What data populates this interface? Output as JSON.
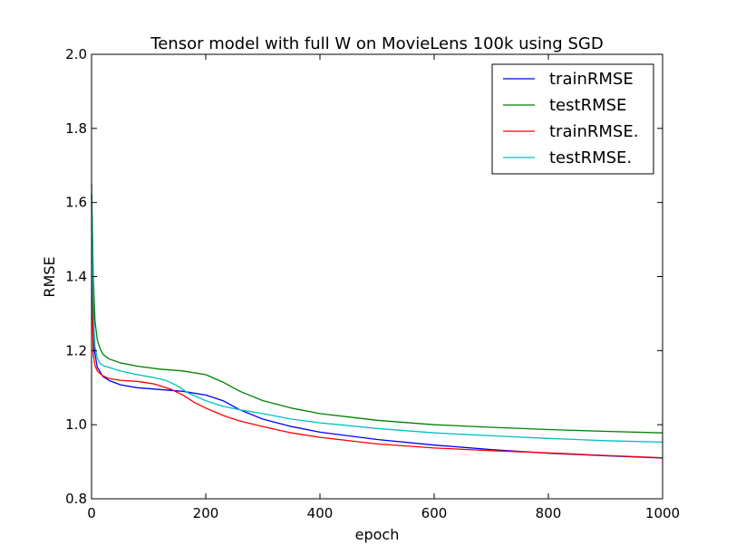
{
  "chart_data": {
    "type": "line",
    "title": "Tensor model with full W on MovieLens 100k using SGD",
    "xlabel": "epoch",
    "ylabel": "RMSE",
    "xlim": [
      0,
      1000
    ],
    "ylim": [
      0.8,
      2.0
    ],
    "xticks": [
      0,
      200,
      400,
      600,
      800,
      1000
    ],
    "xtick_labels": [
      "0",
      "200",
      "400",
      "600",
      "800",
      "1000"
    ],
    "yticks": [
      0.8,
      1.0,
      1.2,
      1.4,
      1.6,
      1.8,
      2.0
    ],
    "ytick_labels": [
      "0.8",
      "1.0",
      "1.2",
      "1.4",
      "1.6",
      "1.8",
      "2.0"
    ],
    "grid": false,
    "legend_position": "top-right",
    "series": [
      {
        "name": "trainRMSE",
        "color": "#0000ff",
        "x": [
          0,
          5,
          10,
          20,
          30,
          50,
          80,
          120,
          160,
          200,
          230,
          260,
          300,
          350,
          400,
          500,
          600,
          700,
          800,
          900,
          1000
        ],
        "y": [
          1.62,
          1.2,
          1.155,
          1.13,
          1.12,
          1.108,
          1.1,
          1.095,
          1.09,
          1.08,
          1.065,
          1.04,
          1.015,
          0.995,
          0.98,
          0.96,
          0.945,
          0.933,
          0.923,
          0.916,
          0.91
        ]
      },
      {
        "name": "testRMSE",
        "color": "#008000",
        "x": [
          0,
          3,
          6,
          10,
          15,
          20,
          30,
          50,
          80,
          120,
          160,
          200,
          230,
          260,
          300,
          350,
          400,
          500,
          600,
          700,
          800,
          900,
          1000
        ],
        "y": [
          1.65,
          1.4,
          1.28,
          1.23,
          1.205,
          1.19,
          1.178,
          1.167,
          1.158,
          1.15,
          1.145,
          1.135,
          1.115,
          1.09,
          1.065,
          1.045,
          1.03,
          1.012,
          1.0,
          0.993,
          0.987,
          0.982,
          0.978
        ]
      },
      {
        "name": "trainRMSE.",
        "color": "#ff0000",
        "x": [
          0,
          3,
          6,
          10,
          15,
          20,
          30,
          50,
          80,
          110,
          140,
          160,
          180,
          200,
          230,
          260,
          300,
          350,
          400,
          500,
          600,
          700,
          800,
          900,
          1000
        ],
        "y": [
          1.45,
          1.19,
          1.16,
          1.145,
          1.138,
          1.132,
          1.125,
          1.12,
          1.117,
          1.11,
          1.095,
          1.08,
          1.06,
          1.045,
          1.025,
          1.01,
          0.995,
          0.978,
          0.966,
          0.948,
          0.937,
          0.93,
          0.924,
          0.917,
          0.911
        ]
      },
      {
        "name": "testRMSE.",
        "color": "#00bfbf",
        "x": [
          0,
          3,
          6,
          10,
          15,
          20,
          30,
          50,
          80,
          110,
          130,
          150,
          170,
          200,
          230,
          260,
          300,
          350,
          400,
          500,
          600,
          700,
          800,
          900,
          1000
        ],
        "y": [
          1.6,
          1.3,
          1.21,
          1.18,
          1.165,
          1.16,
          1.155,
          1.145,
          1.135,
          1.127,
          1.12,
          1.105,
          1.085,
          1.065,
          1.05,
          1.04,
          1.03,
          1.015,
          1.005,
          0.99,
          0.978,
          0.97,
          0.963,
          0.957,
          0.953
        ]
      }
    ]
  }
}
